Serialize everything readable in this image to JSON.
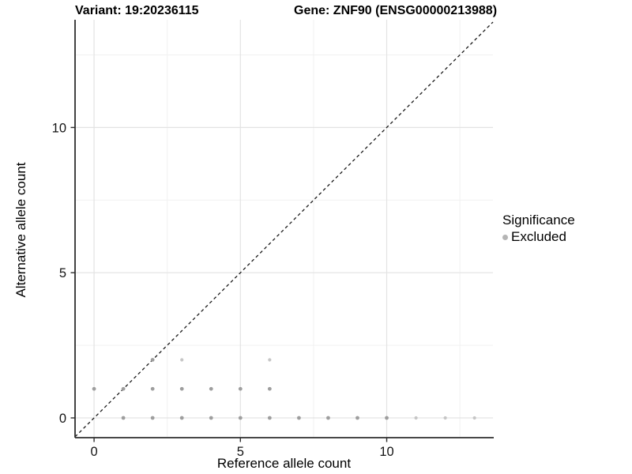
{
  "titles": {
    "left": "Variant: 19:20236115",
    "right": "Gene: ZNF90 (ENSG00000213988)"
  },
  "legend": {
    "title": "Significance",
    "items": [
      {
        "label": "Excluded",
        "color": "#b5b5b5"
      }
    ]
  },
  "chart_data": {
    "type": "scatter",
    "title_left": "Variant: 19:20236115",
    "title_right": "Gene: ZNF90 (ENSG00000213988)",
    "xlabel": "Reference allele count",
    "ylabel": "Alternative allele count",
    "xticks": [
      0,
      5,
      10
    ],
    "yticks": [
      0,
      5,
      10
    ],
    "grid_minor_x": [
      2.5,
      7.5,
      12.5
    ],
    "grid_minor_y": [
      2.5,
      7.5,
      12.5
    ],
    "xlim": [
      -0.65,
      13.63
    ],
    "ylim": [
      -0.68,
      13.71
    ],
    "grid": true,
    "legend_position": "right",
    "reference_line": {
      "kind": "identity",
      "style": "dashed",
      "color": "#1a1a1a"
    },
    "point_style": {
      "dark": {
        "color": "#9e9e9e",
        "r": 2.4
      },
      "light": {
        "color": "#c6c6c6",
        "r": 2.1
      }
    },
    "series": [
      {
        "name": "Excluded",
        "points": [
          {
            "x": 0,
            "y": 1,
            "tone": "dark"
          },
          {
            "x": 1,
            "y": 1,
            "tone": "dark"
          },
          {
            "x": 2,
            "y": 1,
            "tone": "dark"
          },
          {
            "x": 3,
            "y": 1,
            "tone": "dark"
          },
          {
            "x": 4,
            "y": 1,
            "tone": "dark"
          },
          {
            "x": 5,
            "y": 1,
            "tone": "dark"
          },
          {
            "x": 6,
            "y": 1,
            "tone": "dark"
          },
          {
            "x": 1,
            "y": 0,
            "tone": "dark"
          },
          {
            "x": 2,
            "y": 0,
            "tone": "dark"
          },
          {
            "x": 3,
            "y": 0,
            "tone": "dark"
          },
          {
            "x": 4,
            "y": 0,
            "tone": "dark"
          },
          {
            "x": 5,
            "y": 0,
            "tone": "dark"
          },
          {
            "x": 6,
            "y": 0,
            "tone": "dark"
          },
          {
            "x": 7,
            "y": 0,
            "tone": "dark"
          },
          {
            "x": 8,
            "y": 0,
            "tone": "dark"
          },
          {
            "x": 9,
            "y": 0,
            "tone": "dark"
          },
          {
            "x": 10,
            "y": 0,
            "tone": "dark"
          },
          {
            "x": 11,
            "y": 0,
            "tone": "light"
          },
          {
            "x": 12,
            "y": 0,
            "tone": "light"
          },
          {
            "x": 13,
            "y": 0,
            "tone": "light"
          },
          {
            "x": 2,
            "y": 2,
            "tone": "dark"
          },
          {
            "x": 3,
            "y": 2,
            "tone": "light"
          },
          {
            "x": 6,
            "y": 2,
            "tone": "light"
          }
        ]
      }
    ],
    "style_colors": {
      "grid_major": "#e3e3e3",
      "grid_minor": "#f1f1f1",
      "axis_line": "#2e2e2e",
      "tick_label": "#141414"
    }
  }
}
